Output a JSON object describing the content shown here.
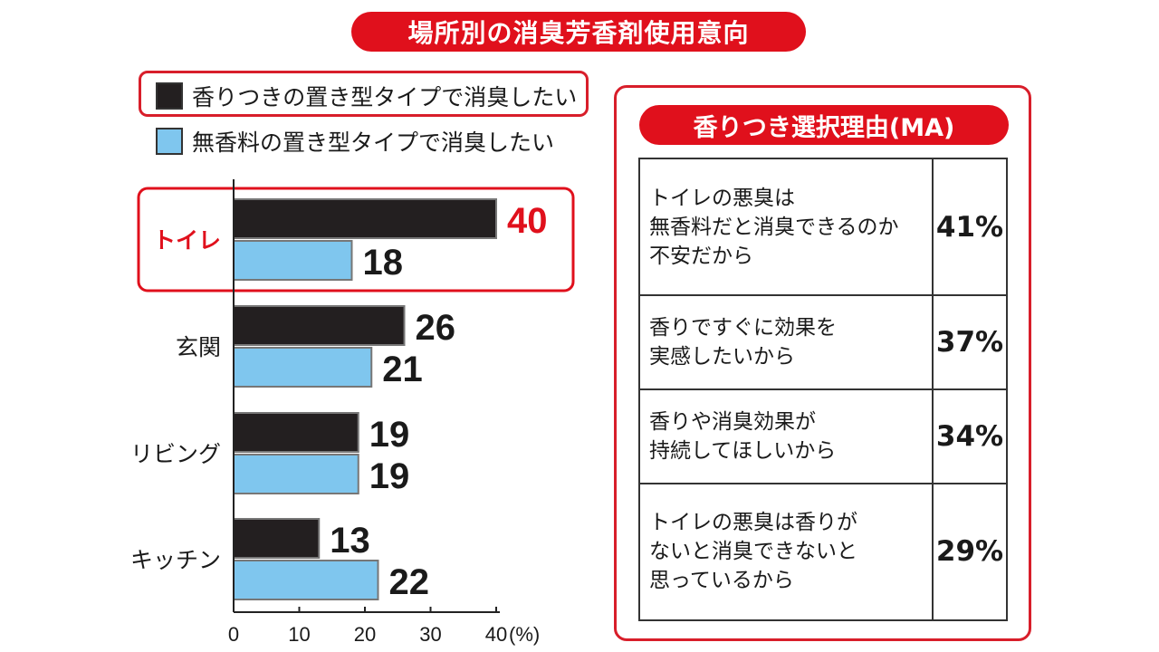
{
  "title": "場所別の消臭芳香剤使用意向",
  "legend": {
    "scented": "香りつきの置き型タイプで消臭したい",
    "unscented": "無香料の置き型タイプで消臭したい"
  },
  "colors": {
    "scented": "#231f20",
    "unscented": "#7fc6ee",
    "accent": "#e0101c"
  },
  "chart_data": {
    "type": "bar",
    "orientation": "horizontal",
    "categories": [
      "トイレ",
      "玄関",
      "リビング",
      "キッチン"
    ],
    "highlight_category": "トイレ",
    "series": [
      {
        "name": "香りつきの置き型タイプで消臭したい",
        "values": [
          40,
          26,
          19,
          13
        ]
      },
      {
        "name": "無香料の置き型タイプで消臭したい",
        "values": [
          18,
          21,
          19,
          22
        ]
      }
    ],
    "xlim": [
      0,
      40
    ],
    "ticks": [
      0,
      10,
      20,
      30,
      40
    ],
    "tick_labels": [
      "0",
      "10",
      "20",
      "30",
      "40"
    ],
    "unit": "(%)"
  },
  "reasons": {
    "title": "香りつき選択理由(MA)",
    "items": [
      {
        "lines": [
          "トイレの悪臭は",
          "無香料だと消臭できるのか",
          "不安だから"
        ],
        "pct": "41%"
      },
      {
        "lines": [
          "香りですぐに効果を",
          "実感したいから"
        ],
        "pct": "37%"
      },
      {
        "lines": [
          "香りや消臭効果が",
          "持続してほしいから"
        ],
        "pct": "34%"
      },
      {
        "lines": [
          "トイレの悪臭は香りが",
          "ないと消臭できないと",
          "思っているから"
        ],
        "pct": "29%"
      }
    ]
  }
}
